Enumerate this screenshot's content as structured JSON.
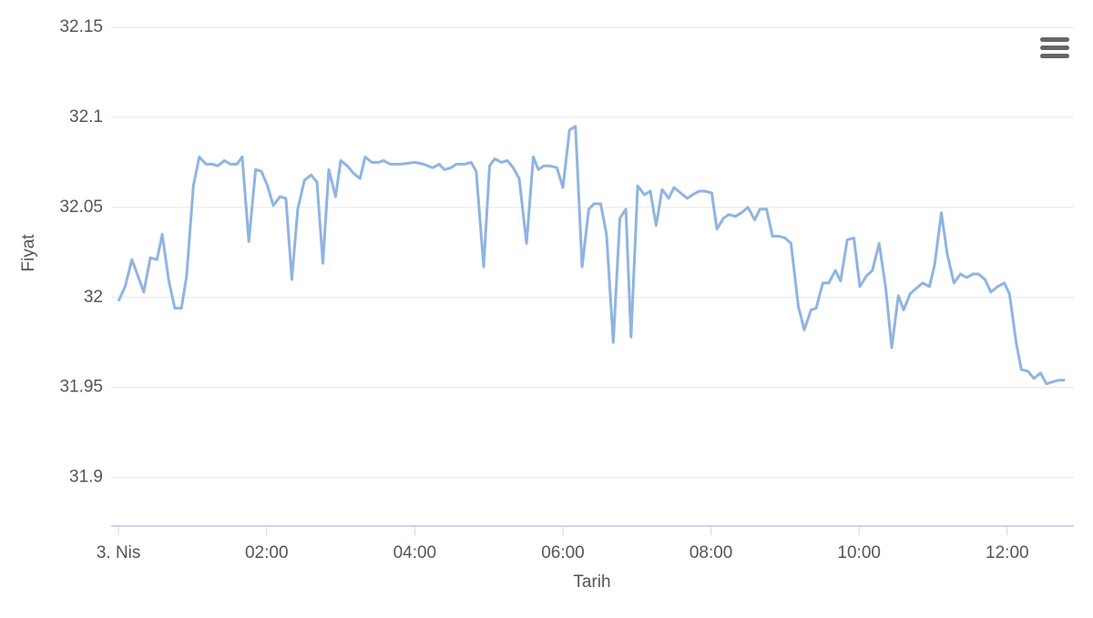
{
  "chart_data": {
    "type": "line",
    "y_label": "Fiyat",
    "x_label": "Tarih",
    "x": [
      0.0,
      0.09,
      0.18,
      0.27,
      0.34,
      0.43,
      0.52,
      0.59,
      0.68,
      0.76,
      0.85,
      0.92,
      1.01,
      1.09,
      1.18,
      1.27,
      1.34,
      1.43,
      1.51,
      1.6,
      1.67,
      1.76,
      1.85,
      1.93,
      2.01,
      2.09,
      2.18,
      2.26,
      2.34,
      2.42,
      2.51,
      2.6,
      2.68,
      2.76,
      2.84,
      2.93,
      3.0,
      3.09,
      3.17,
      3.26,
      3.33,
      3.42,
      3.51,
      3.58,
      3.67,
      3.81,
      4.0,
      4.12,
      4.24,
      4.33,
      4.4,
      4.49,
      4.56,
      4.67,
      4.76,
      4.83,
      4.93,
      5.01,
      5.08,
      5.17,
      5.25,
      5.33,
      5.41,
      5.51,
      5.6,
      5.67,
      5.74,
      5.83,
      5.92,
      6.0,
      6.09,
      6.17,
      6.26,
      6.35,
      6.42,
      6.51,
      6.59,
      6.68,
      6.77,
      6.85,
      6.92,
      7.01,
      7.1,
      7.18,
      7.26,
      7.34,
      7.43,
      7.5,
      7.59,
      7.68,
      7.75,
      7.84,
      7.92,
      8.01,
      8.08,
      8.17,
      8.24,
      8.33,
      8.41,
      8.5,
      8.59,
      8.66,
      8.75,
      8.83,
      8.92,
      9.0,
      9.08,
      9.18,
      9.26,
      9.35,
      9.42,
      9.51,
      9.59,
      9.68,
      9.75,
      9.84,
      9.93,
      10.01,
      10.1,
      10.18,
      10.27,
      10.36,
      10.44,
      10.53,
      10.6,
      10.69,
      10.77,
      10.86,
      10.95,
      11.02,
      11.11,
      11.19,
      11.28,
      11.37,
      11.45,
      11.54,
      11.61,
      11.7,
      11.78,
      11.87,
      11.96,
      12.03,
      12.12,
      12.19,
      12.28,
      12.36,
      12.45,
      12.53,
      12.61,
      12.69,
      12.78
    ],
    "values": [
      31.998,
      32.006,
      32.021,
      32.011,
      32.003,
      32.022,
      32.021,
      32.035,
      32.009,
      31.994,
      31.994,
      32.012,
      32.062,
      32.078,
      32.074,
      32.074,
      32.073,
      32.076,
      32.074,
      32.074,
      32.078,
      32.031,
      32.071,
      32.07,
      32.062,
      32.051,
      32.056,
      32.055,
      32.01,
      32.049,
      32.065,
      32.068,
      32.064,
      32.019,
      32.071,
      32.056,
      32.076,
      32.073,
      32.069,
      32.066,
      32.078,
      32.075,
      32.075,
      32.076,
      32.074,
      32.074,
      32.075,
      32.074,
      32.072,
      32.074,
      32.071,
      32.072,
      32.074,
      32.074,
      32.075,
      32.07,
      32.017,
      32.073,
      32.077,
      32.075,
      32.076,
      32.072,
      32.066,
      32.03,
      32.078,
      32.071,
      32.073,
      32.073,
      32.072,
      32.061,
      32.093,
      32.095,
      32.017,
      32.049,
      32.052,
      32.052,
      32.035,
      31.975,
      32.044,
      32.049,
      31.978,
      32.062,
      32.057,
      32.059,
      32.04,
      32.06,
      32.055,
      32.061,
      32.058,
      32.055,
      32.057,
      32.059,
      32.059,
      32.058,
      32.038,
      32.044,
      32.046,
      32.045,
      32.047,
      32.05,
      32.043,
      32.049,
      32.049,
      32.034,
      32.034,
      32.033,
      32.03,
      31.995,
      31.982,
      31.993,
      31.994,
      32.008,
      32.008,
      32.015,
      32.009,
      32.032,
      32.033,
      32.006,
      32.012,
      32.015,
      32.03,
      32.005,
      31.972,
      32.001,
      31.993,
      32.002,
      32.005,
      32.008,
      32.006,
      32.018,
      32.047,
      32.024,
      32.008,
      32.013,
      32.011,
      32.013,
      32.013,
      32.01,
      32.003,
      32.006,
      32.008,
      32.002,
      31.975,
      31.96,
      31.959,
      31.955,
      31.958,
      31.952,
      31.953,
      31.954,
      31.954
    ],
    "color": "#8fb4e2",
    "xlim": [
      -0.1,
      12.9
    ],
    "xticks": [
      {
        "value": 0,
        "label": "3. Nis"
      },
      {
        "value": 2,
        "label": "02:00"
      },
      {
        "value": 4,
        "label": "04:00"
      },
      {
        "value": 6,
        "label": "06:00"
      },
      {
        "value": 8,
        "label": "08:00"
      },
      {
        "value": 10,
        "label": "10:00"
      },
      {
        "value": 12,
        "label": "12:00"
      }
    ],
    "ylim": [
      31.873,
      32.15
    ],
    "yticks": [
      31.9,
      31.95,
      32,
      32.05,
      32.1,
      32.15
    ],
    "grid": true
  }
}
